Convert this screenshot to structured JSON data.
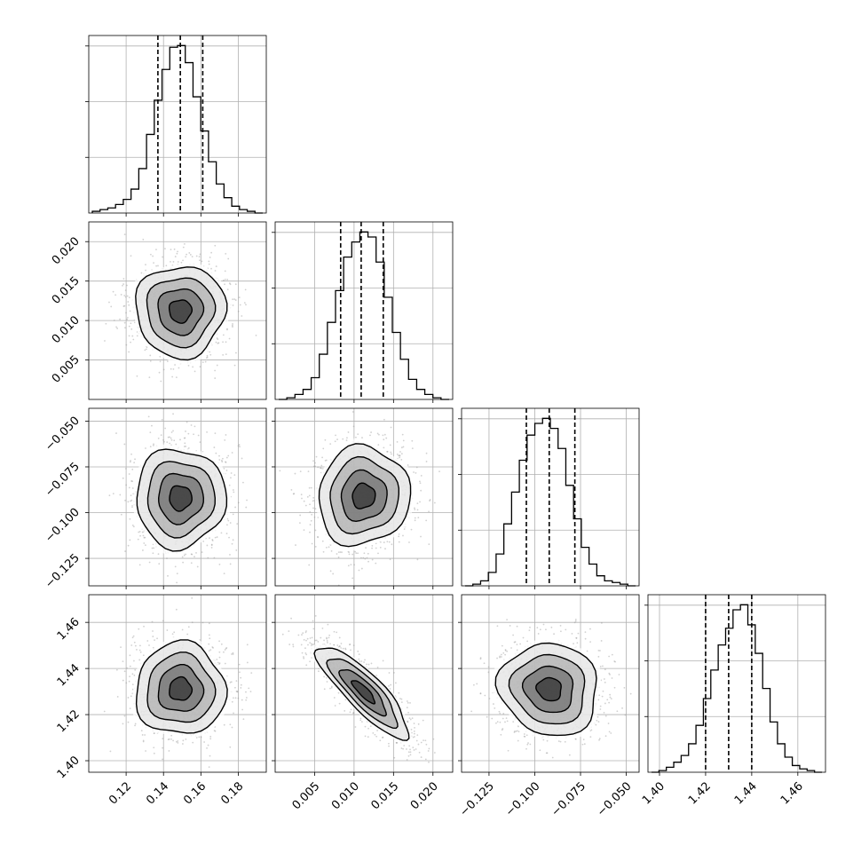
{
  "chart_data": {
    "type": "corner",
    "grid": true,
    "parameters": [
      {
        "range": [
          0.1,
          0.195
        ],
        "ticks": [
          0.12,
          0.14,
          0.16,
          0.18
        ],
        "tick_labels": [
          "0.12",
          "0.14",
          "0.16",
          "0.18"
        ],
        "quantiles": [
          0.137,
          0.149,
          0.161
        ],
        "hist_counts": [
          1,
          2,
          3,
          5,
          8,
          14,
          26,
          46,
          66,
          84,
          97,
          98,
          88,
          68,
          48,
          30,
          17,
          9,
          4,
          2,
          1,
          0
        ]
      },
      {
        "range": [
          0.0,
          0.0225
        ],
        "ticks": [
          0.005,
          0.01,
          0.015,
          0.02
        ],
        "tick_labels": [
          "0.005",
          "0.010",
          "0.015",
          "0.020"
        ],
        "quantiles": [
          0.0083,
          0.0109,
          0.0137
        ],
        "hist_counts": [
          0,
          1,
          3,
          6,
          13,
          27,
          46,
          65,
          85,
          94,
          100,
          97,
          82,
          61,
          40,
          24,
          12,
          6,
          3,
          1,
          0
        ]
      },
      {
        "range": [
          -0.14,
          -0.043
        ],
        "ticks": [
          -0.125,
          -0.1,
          -0.075,
          -0.05
        ],
        "tick_labels": [
          "−0.125",
          "−0.100",
          "−0.075",
          "−0.050"
        ],
        "quantiles": [
          -0.1046,
          -0.0921,
          -0.0781
        ],
        "hist_counts": [
          0,
          1,
          3,
          8,
          19,
          37,
          56,
          75,
          90,
          97,
          100,
          94,
          82,
          60,
          40,
          23,
          13,
          6,
          3,
          2,
          1,
          0
        ]
      },
      {
        "range": [
          1.395,
          1.472
        ],
        "ticks": [
          1.4,
          1.42,
          1.44,
          1.46
        ],
        "tick_labels": [
          "1.40",
          "1.42",
          "1.44",
          "1.46"
        ],
        "quantiles": [
          1.42,
          1.43,
          1.44
        ],
        "hist_counts": [
          0,
          1,
          3,
          6,
          10,
          17,
          28,
          44,
          61,
          76,
          86,
          97,
          100,
          88,
          71,
          50,
          30,
          17,
          9,
          4,
          2,
          1,
          0
        ]
      }
    ],
    "density_pairs": [
      {
        "x": 0,
        "y": 1,
        "center": [
          0.149,
          0.0112
        ],
        "sigma": [
          0.012,
          0.0029
        ],
        "corr": 0.0
      },
      {
        "x": 0,
        "y": 2,
        "center": [
          0.149,
          -0.092
        ],
        "sigma": [
          0.012,
          0.0135
        ],
        "corr": 0.0
      },
      {
        "x": 1,
        "y": 2,
        "center": [
          0.0112,
          -0.091
        ],
        "sigma": [
          0.0029,
          0.0135
        ],
        "corr": 0.05
      },
      {
        "x": 0,
        "y": 3,
        "center": [
          0.149,
          1.431
        ],
        "sigma": [
          0.012,
          0.01
        ],
        "corr": 0.0
      },
      {
        "x": 1,
        "y": 3,
        "center": [
          0.0112,
          1.43
        ],
        "sigma": [
          0.0029,
          0.01
        ],
        "corr": -0.85
      },
      {
        "x": 2,
        "y": 3,
        "center": [
          -0.092,
          1.431
        ],
        "sigma": [
          0.0135,
          0.01
        ],
        "corr": -0.08
      }
    ],
    "contour_levels_sigma": [
      0.5,
      1.0,
      1.5,
      2.0
    ]
  }
}
